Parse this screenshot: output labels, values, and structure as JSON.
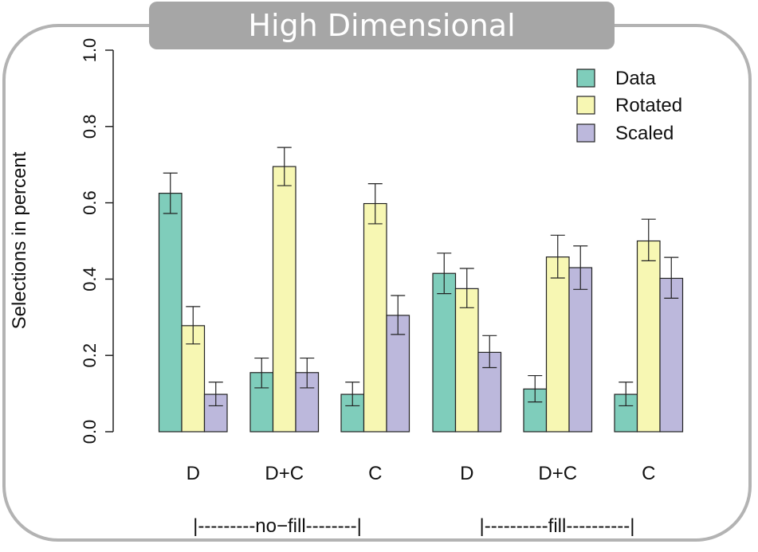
{
  "chart_data": {
    "type": "bar",
    "title": "High Dimensional",
    "ylabel": "Selections in percent",
    "xlabel": "",
    "ylim": [
      0,
      1.0
    ],
    "yticks": [
      "0.0",
      "0.2",
      "0.4",
      "0.6",
      "0.8",
      "1.0"
    ],
    "categories": [
      "D",
      "D+C",
      "C",
      "D",
      "D+C",
      "C"
    ],
    "group_labels": [
      "|---------no−fill--------|",
      "|----------fill----------|"
    ],
    "legend_position": "top-right",
    "grid": false,
    "series": [
      {
        "name": "Data",
        "color": "#7fcdbb",
        "values": [
          0.625,
          0.155,
          0.098,
          0.415,
          0.112,
          0.098
        ],
        "err_low": [
          0.572,
          0.115,
          0.068,
          0.362,
          0.078,
          0.068
        ],
        "err_high": [
          0.678,
          0.193,
          0.13,
          0.468,
          0.147,
          0.13
        ]
      },
      {
        "name": "Rotated",
        "color": "#f7f7b3",
        "values": [
          0.278,
          0.695,
          0.598,
          0.375,
          0.458,
          0.5
        ],
        "err_low": [
          0.23,
          0.645,
          0.545,
          0.325,
          0.403,
          0.448
        ],
        "err_high": [
          0.328,
          0.745,
          0.65,
          0.428,
          0.515,
          0.557
        ]
      },
      {
        "name": "Scaled",
        "color": "#bcb8dc",
        "values": [
          0.098,
          0.155,
          0.305,
          0.208,
          0.43,
          0.402
        ],
        "err_low": [
          0.068,
          0.115,
          0.255,
          0.168,
          0.373,
          0.35
        ],
        "err_high": [
          0.13,
          0.193,
          0.357,
          0.252,
          0.487,
          0.457
        ]
      }
    ]
  }
}
